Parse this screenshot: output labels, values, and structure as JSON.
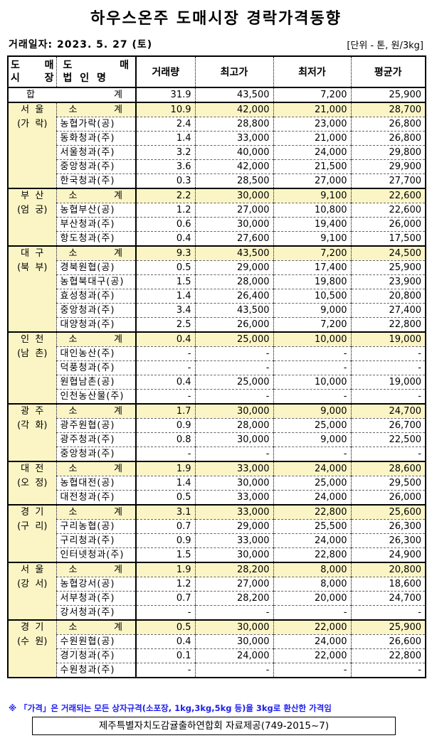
{
  "title": "하우스온주 도매시장 경락가격동향",
  "date_line": "거래일자: 2023. 5. 27 (토)",
  "unit": "[단위 - 톤, 원/3kg]",
  "header": {
    "market": [
      "도",
      "매",
      "시",
      "장"
    ],
    "corp": [
      "도",
      "매",
      "법 인 명"
    ],
    "volume": "거래량",
    "max": "최고가",
    "min": "최저가",
    "avg": "평균가"
  },
  "total": {
    "label_left": "합",
    "label_right": "계",
    "volume": "31.9",
    "max": "43,500",
    "min": "7,200",
    "avg": "25,900"
  },
  "subtotal_label": [
    "소",
    "계"
  ],
  "colors": {
    "subtotal_bg": "#fbf5c6",
    "note": "#1c1cf0"
  },
  "groups": [
    {
      "market": [
        "서  울",
        "(가  락)"
      ],
      "sub": [
        "10.9",
        "42,000",
        "21,000",
        "28,700"
      ],
      "rows": [
        [
          "농협가락(공)",
          "2.4",
          "28,800",
          "23,000",
          "26,800"
        ],
        [
          "동화청과(주)",
          "1.4",
          "33,000",
          "21,000",
          "26,800"
        ],
        [
          "서울청과(주)",
          "3.2",
          "40,000",
          "24,000",
          "29,800"
        ],
        [
          "중앙청과(주)",
          "3.6",
          "42,000",
          "21,500",
          "29,900"
        ],
        [
          "한국청과(주)",
          "0.3",
          "28,500",
          "27,000",
          "27,700"
        ]
      ]
    },
    {
      "market": [
        "부  산",
        "(엄  궁)"
      ],
      "sub": [
        "2.2",
        "30,000",
        "9,100",
        "22,600"
      ],
      "rows": [
        [
          "농협부산(공)",
          "1.2",
          "27,000",
          "10,800",
          "22,600"
        ],
        [
          "부산청과(주)",
          "0.6",
          "30,000",
          "19,400",
          "26,000"
        ],
        [
          "항도청과(주)",
          "0.4",
          "27,600",
          "9,100",
          "17,500"
        ]
      ]
    },
    {
      "market": [
        "대  구",
        "(북  부)"
      ],
      "sub": [
        "9.3",
        "43,500",
        "7,200",
        "24,500"
      ],
      "rows": [
        [
          "경북원협(공)",
          "0.5",
          "29,000",
          "17,400",
          "25,900"
        ],
        [
          "농협북대구(공)",
          "1.5",
          "28,000",
          "19,800",
          "23,900"
        ],
        [
          "효성청과(주)",
          "1.4",
          "26,400",
          "10,500",
          "20,800"
        ],
        [
          "중앙청과(주)",
          "3.4",
          "43,500",
          "9,000",
          "27,400"
        ],
        [
          "대양청과(주)",
          "2.5",
          "26,000",
          "7,200",
          "22,800"
        ]
      ]
    },
    {
      "market": [
        "인  천",
        "(남  촌)"
      ],
      "sub": [
        "0.4",
        "25,000",
        "10,000",
        "19,000"
      ],
      "rows": [
        [
          "대인농산(주)",
          "-",
          "-",
          "-",
          "-"
        ],
        [
          "덕풍청과(주)",
          "-",
          "-",
          "-",
          "-"
        ],
        [
          "원협남촌(공)",
          "0.4",
          "25,000",
          "10,000",
          "19,000"
        ],
        [
          "인천농산물(주)",
          "-",
          "-",
          "-",
          "-"
        ]
      ]
    },
    {
      "market": [
        "광  주",
        "(각  화)"
      ],
      "sub": [
        "1.7",
        "30,000",
        "9,000",
        "24,700"
      ],
      "rows": [
        [
          "광주원협(공)",
          "0.9",
          "28,000",
          "25,000",
          "26,700"
        ],
        [
          "광주청과(주)",
          "0.8",
          "30,000",
          "9,000",
          "22,500"
        ],
        [
          "중앙청과(주)",
          "-",
          "-",
          "-",
          "-"
        ]
      ]
    },
    {
      "market": [
        "대  전",
        "(오  정)"
      ],
      "sub": [
        "1.9",
        "33,000",
        "24,000",
        "28,600"
      ],
      "rows": [
        [
          "농협대전(공)",
          "1.4",
          "30,000",
          "25,000",
          "29,500"
        ],
        [
          "대전청과(주)",
          "0.5",
          "33,000",
          "24,000",
          "26,000"
        ]
      ]
    },
    {
      "market": [
        "경  기",
        "(구  리)"
      ],
      "sub": [
        "3.1",
        "33,000",
        "22,800",
        "25,600"
      ],
      "rows": [
        [
          "구리농협(공)",
          "0.7",
          "29,000",
          "25,500",
          "26,300"
        ],
        [
          "구리청과(주)",
          "0.9",
          "33,000",
          "24,000",
          "26,300"
        ],
        [
          "인터넷청과(주)",
          "1.5",
          "30,000",
          "22,800",
          "24,900"
        ]
      ]
    },
    {
      "market": [
        "서  울",
        "(강  서)"
      ],
      "sub": [
        "1.9",
        "28,200",
        "8,000",
        "20,800"
      ],
      "rows": [
        [
          "농협강서(공)",
          "1.2",
          "27,000",
          "8,000",
          "18,600"
        ],
        [
          "서부청과(주)",
          "0.7",
          "28,200",
          "20,000",
          "24,700"
        ],
        [
          "강서청과(주)",
          "-",
          "-",
          "-",
          "-"
        ]
      ]
    },
    {
      "market": [
        "경  기",
        "(수  원)"
      ],
      "sub": [
        "0.5",
        "30,000",
        "22,000",
        "25,900"
      ],
      "rows": [
        [
          "수원원협(공)",
          "0.4",
          "30,000",
          "24,000",
          "26,600"
        ],
        [
          "경기청과(주)",
          "0.1",
          "24,000",
          "22,000",
          "22,800"
        ],
        [
          "수원청과(주)",
          "-",
          "-",
          "-",
          "-"
        ]
      ]
    }
  ],
  "note": "※ 「가격」은  거래되는 모든 상자규격(소포장, 1kg,3kg,5kg 등)을 3kg로 환산한 가격임",
  "footer": "제주특별자치도감귤출하연합회 자료제공(749-2015~7)"
}
